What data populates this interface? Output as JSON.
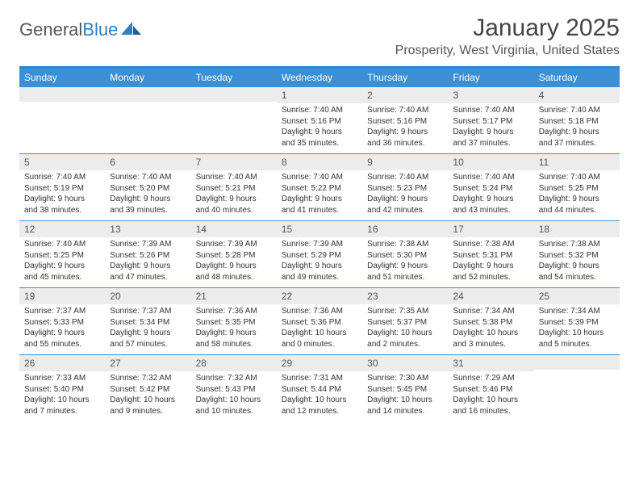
{
  "logo": {
    "general": "General",
    "blue": "Blue"
  },
  "header": {
    "month_title": "January 2025",
    "location": "Prosperity, West Virginia, United States"
  },
  "colors": {
    "brand_blue": "#3b8fd4",
    "header_rule": "#2f7ec2",
    "daynum_bg": "#ececec",
    "text": "#333333"
  },
  "days_of_week": [
    "Sunday",
    "Monday",
    "Tuesday",
    "Wednesday",
    "Thursday",
    "Friday",
    "Saturday"
  ],
  "weeks": [
    [
      {
        "num": "",
        "lines": []
      },
      {
        "num": "",
        "lines": []
      },
      {
        "num": "",
        "lines": []
      },
      {
        "num": "1",
        "lines": [
          "Sunrise: 7:40 AM",
          "Sunset: 5:16 PM",
          "Daylight: 9 hours and 35 minutes."
        ]
      },
      {
        "num": "2",
        "lines": [
          "Sunrise: 7:40 AM",
          "Sunset: 5:16 PM",
          "Daylight: 9 hours and 36 minutes."
        ]
      },
      {
        "num": "3",
        "lines": [
          "Sunrise: 7:40 AM",
          "Sunset: 5:17 PM",
          "Daylight: 9 hours and 37 minutes."
        ]
      },
      {
        "num": "4",
        "lines": [
          "Sunrise: 7:40 AM",
          "Sunset: 5:18 PM",
          "Daylight: 9 hours and 37 minutes."
        ]
      }
    ],
    [
      {
        "num": "5",
        "lines": [
          "Sunrise: 7:40 AM",
          "Sunset: 5:19 PM",
          "Daylight: 9 hours and 38 minutes."
        ]
      },
      {
        "num": "6",
        "lines": [
          "Sunrise: 7:40 AM",
          "Sunset: 5:20 PM",
          "Daylight: 9 hours and 39 minutes."
        ]
      },
      {
        "num": "7",
        "lines": [
          "Sunrise: 7:40 AM",
          "Sunset: 5:21 PM",
          "Daylight: 9 hours and 40 minutes."
        ]
      },
      {
        "num": "8",
        "lines": [
          "Sunrise: 7:40 AM",
          "Sunset: 5:22 PM",
          "Daylight: 9 hours and 41 minutes."
        ]
      },
      {
        "num": "9",
        "lines": [
          "Sunrise: 7:40 AM",
          "Sunset: 5:23 PM",
          "Daylight: 9 hours and 42 minutes."
        ]
      },
      {
        "num": "10",
        "lines": [
          "Sunrise: 7:40 AM",
          "Sunset: 5:24 PM",
          "Daylight: 9 hours and 43 minutes."
        ]
      },
      {
        "num": "11",
        "lines": [
          "Sunrise: 7:40 AM",
          "Sunset: 5:25 PM",
          "Daylight: 9 hours and 44 minutes."
        ]
      }
    ],
    [
      {
        "num": "12",
        "lines": [
          "Sunrise: 7:40 AM",
          "Sunset: 5:25 PM",
          "Daylight: 9 hours and 45 minutes."
        ]
      },
      {
        "num": "13",
        "lines": [
          "Sunrise: 7:39 AM",
          "Sunset: 5:26 PM",
          "Daylight: 9 hours and 47 minutes."
        ]
      },
      {
        "num": "14",
        "lines": [
          "Sunrise: 7:39 AM",
          "Sunset: 5:28 PM",
          "Daylight: 9 hours and 48 minutes."
        ]
      },
      {
        "num": "15",
        "lines": [
          "Sunrise: 7:39 AM",
          "Sunset: 5:29 PM",
          "Daylight: 9 hours and 49 minutes."
        ]
      },
      {
        "num": "16",
        "lines": [
          "Sunrise: 7:38 AM",
          "Sunset: 5:30 PM",
          "Daylight: 9 hours and 51 minutes."
        ]
      },
      {
        "num": "17",
        "lines": [
          "Sunrise: 7:38 AM",
          "Sunset: 5:31 PM",
          "Daylight: 9 hours and 52 minutes."
        ]
      },
      {
        "num": "18",
        "lines": [
          "Sunrise: 7:38 AM",
          "Sunset: 5:32 PM",
          "Daylight: 9 hours and 54 minutes."
        ]
      }
    ],
    [
      {
        "num": "19",
        "lines": [
          "Sunrise: 7:37 AM",
          "Sunset: 5:33 PM",
          "Daylight: 9 hours and 55 minutes."
        ]
      },
      {
        "num": "20",
        "lines": [
          "Sunrise: 7:37 AM",
          "Sunset: 5:34 PM",
          "Daylight: 9 hours and 57 minutes."
        ]
      },
      {
        "num": "21",
        "lines": [
          "Sunrise: 7:36 AM",
          "Sunset: 5:35 PM",
          "Daylight: 9 hours and 58 minutes."
        ]
      },
      {
        "num": "22",
        "lines": [
          "Sunrise: 7:36 AM",
          "Sunset: 5:36 PM",
          "Daylight: 10 hours and 0 minutes."
        ]
      },
      {
        "num": "23",
        "lines": [
          "Sunrise: 7:35 AM",
          "Sunset: 5:37 PM",
          "Daylight: 10 hours and 2 minutes."
        ]
      },
      {
        "num": "24",
        "lines": [
          "Sunrise: 7:34 AM",
          "Sunset: 5:38 PM",
          "Daylight: 10 hours and 3 minutes."
        ]
      },
      {
        "num": "25",
        "lines": [
          "Sunrise: 7:34 AM",
          "Sunset: 5:39 PM",
          "Daylight: 10 hours and 5 minutes."
        ]
      }
    ],
    [
      {
        "num": "26",
        "lines": [
          "Sunrise: 7:33 AM",
          "Sunset: 5:40 PM",
          "Daylight: 10 hours and 7 minutes."
        ]
      },
      {
        "num": "27",
        "lines": [
          "Sunrise: 7:32 AM",
          "Sunset: 5:42 PM",
          "Daylight: 10 hours and 9 minutes."
        ]
      },
      {
        "num": "28",
        "lines": [
          "Sunrise: 7:32 AM",
          "Sunset: 5:43 PM",
          "Daylight: 10 hours and 10 minutes."
        ]
      },
      {
        "num": "29",
        "lines": [
          "Sunrise: 7:31 AM",
          "Sunset: 5:44 PM",
          "Daylight: 10 hours and 12 minutes."
        ]
      },
      {
        "num": "30",
        "lines": [
          "Sunrise: 7:30 AM",
          "Sunset: 5:45 PM",
          "Daylight: 10 hours and 14 minutes."
        ]
      },
      {
        "num": "31",
        "lines": [
          "Sunrise: 7:29 AM",
          "Sunset: 5:46 PM",
          "Daylight: 10 hours and 16 minutes."
        ]
      },
      {
        "num": "",
        "lines": []
      }
    ]
  ]
}
